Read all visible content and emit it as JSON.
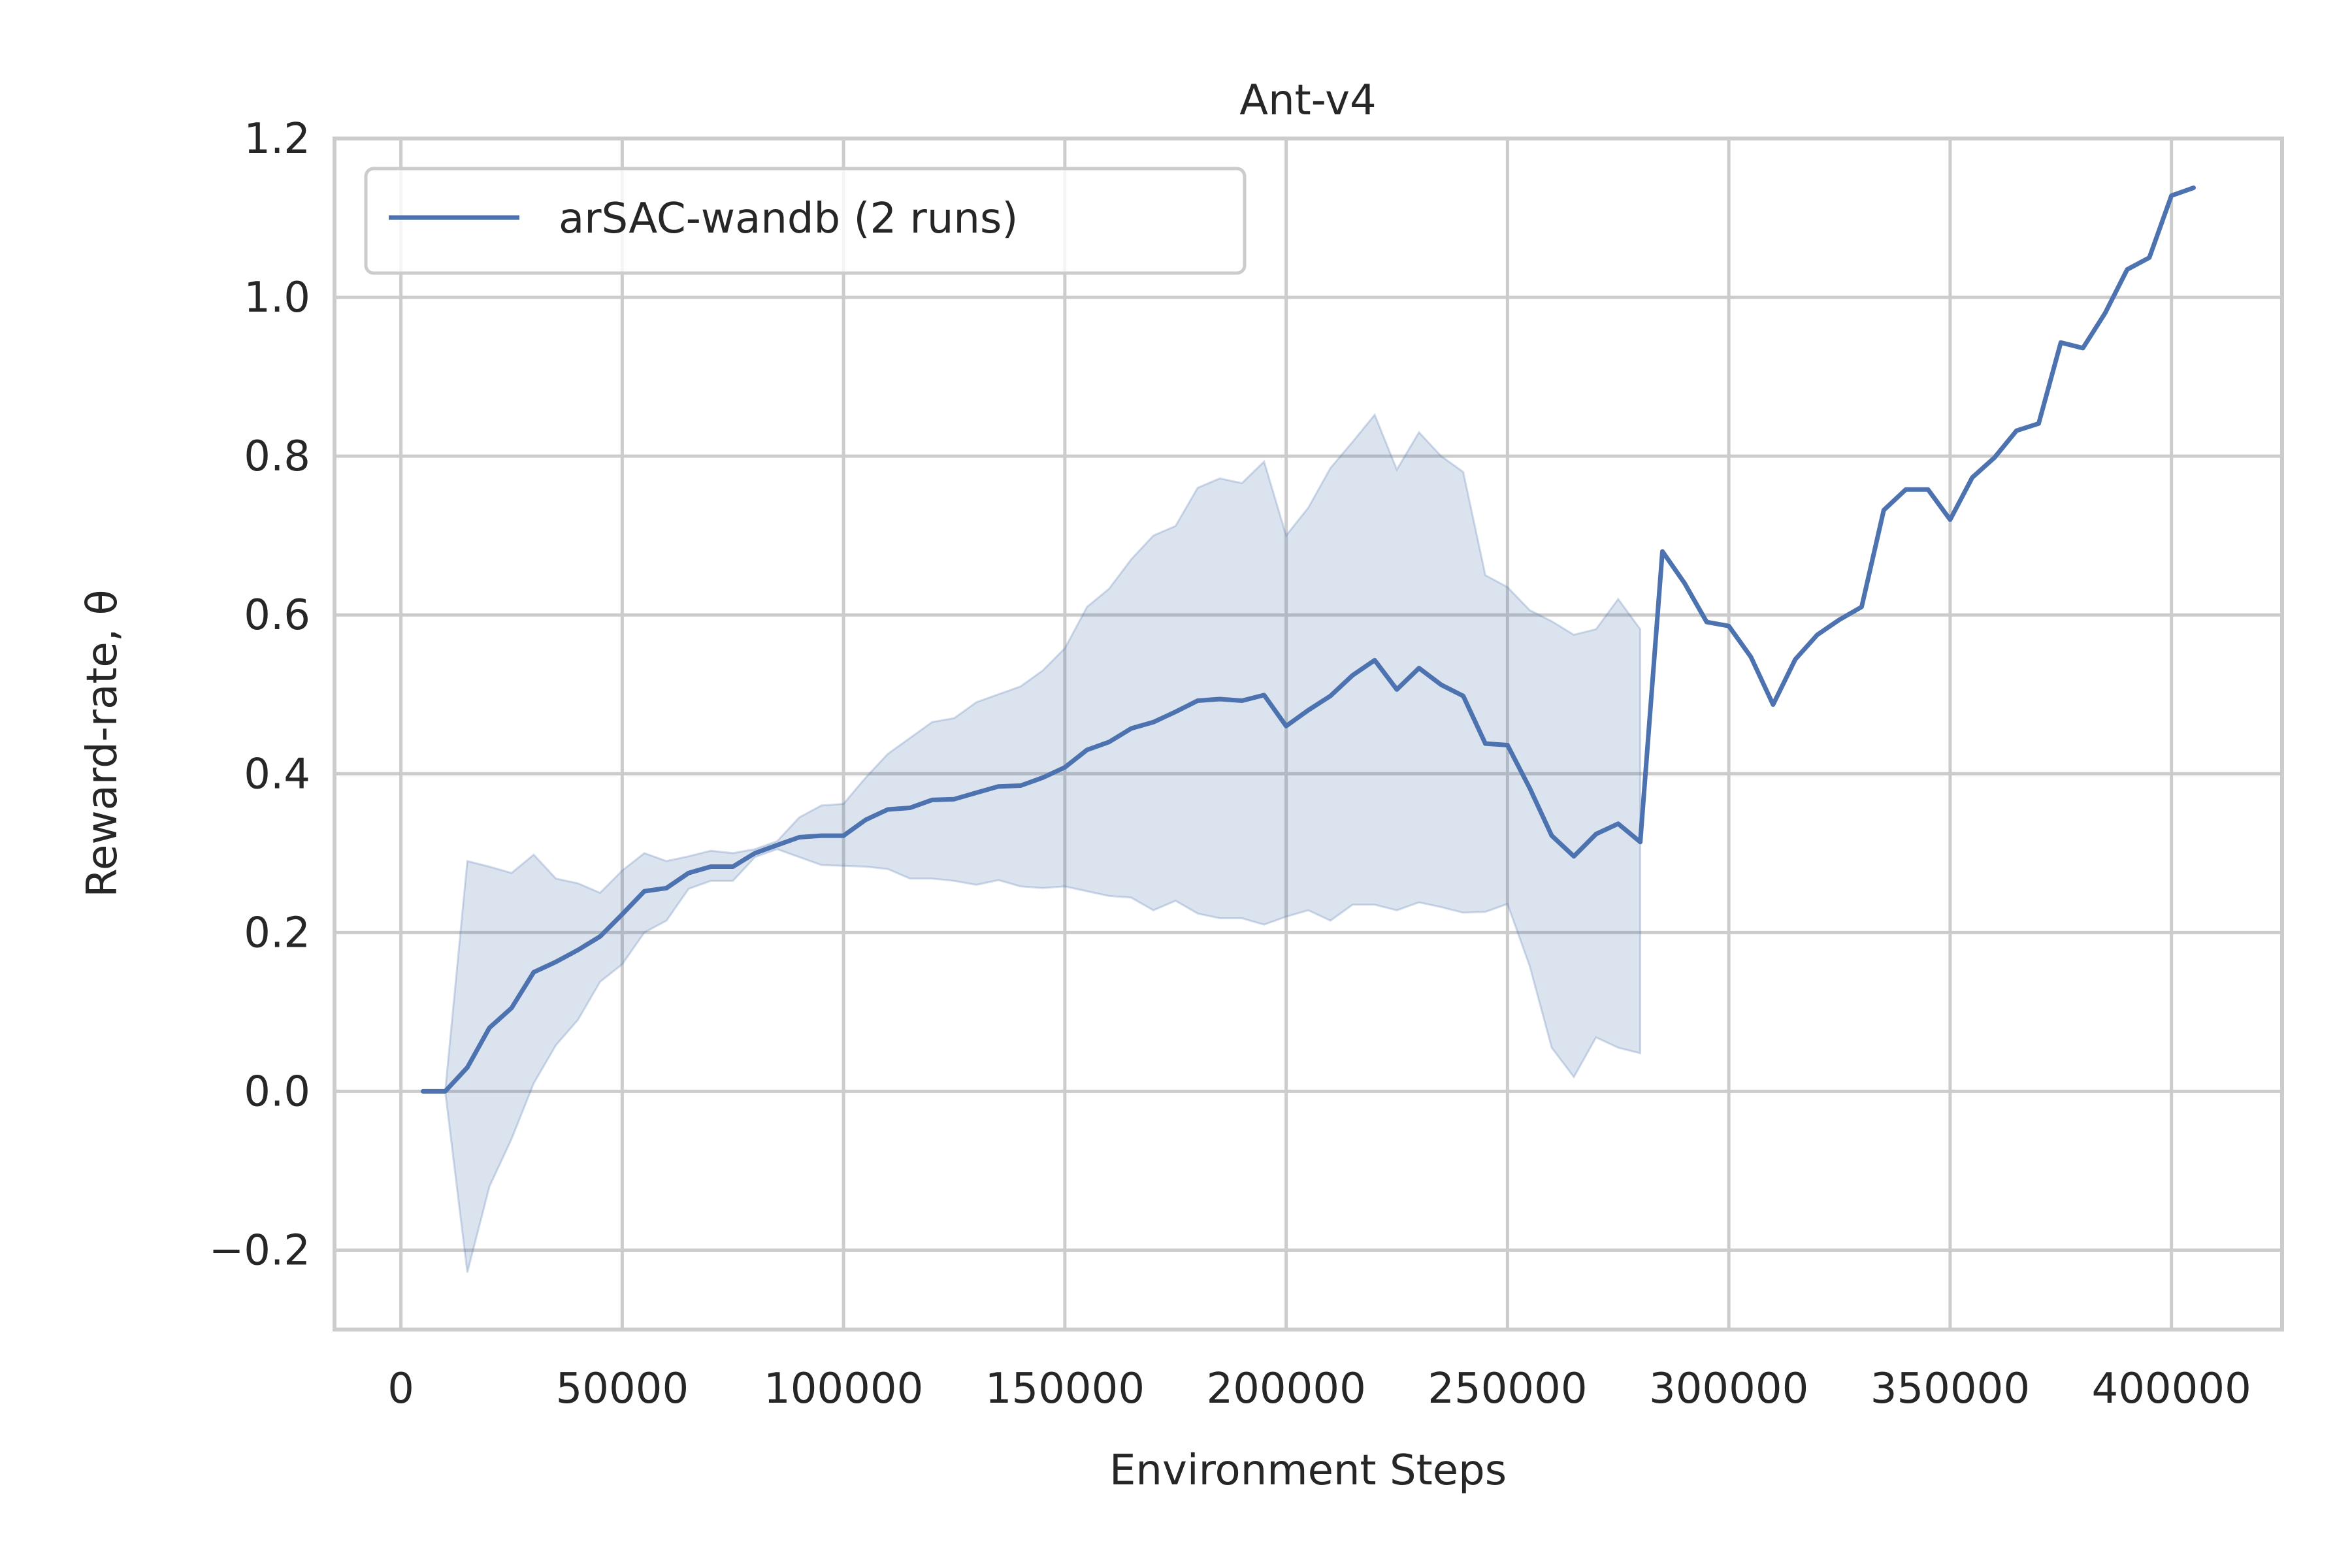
{
  "chart_data": {
    "type": "line",
    "title": "Ant-v4",
    "xlabel": "Environment Steps",
    "ylabel": "Reward-rate, θ",
    "xlim": [
      -15000,
      425000
    ],
    "ylim": [
      -0.3,
      1.2
    ],
    "x_ticks": [
      0,
      50000,
      100000,
      150000,
      200000,
      250000,
      300000,
      350000,
      400000
    ],
    "x_tick_labels": [
      "0",
      "50000",
      "100000",
      "150000",
      "200000",
      "250000",
      "300000",
      "350000",
      "400000"
    ],
    "y_ticks": [
      -0.2,
      0.0,
      0.2,
      0.4,
      0.6,
      0.8,
      1.0,
      1.2
    ],
    "y_tick_labels": [
      "−0.2",
      "0.0",
      "0.2",
      "0.4",
      "0.6",
      "0.8",
      "1.0",
      "1.2"
    ],
    "grid": true,
    "legend_position": "top-left",
    "colors": {
      "line": "#4c72b0",
      "band": "#4c72b0",
      "grid": "#cccccc",
      "spine": "#cccccc"
    },
    "series": [
      {
        "name": "arSAC-wandb (2 runs)",
        "x": [
          5000,
          10000,
          15000,
          20000,
          25000,
          30000,
          35000,
          40000,
          45000,
          50000,
          55000,
          60000,
          65000,
          70000,
          75000,
          80000,
          85000,
          90000,
          95000,
          100000,
          105000,
          110000,
          115000,
          120000,
          125000,
          130000,
          135000,
          140000,
          145000,
          150000,
          155000,
          160000,
          165000,
          170000,
          175000,
          180000,
          185000,
          190000,
          195000,
          200000,
          205000,
          210000,
          215000,
          220000,
          225000,
          230000,
          235000,
          240000,
          245000,
          250000,
          255000,
          260000,
          265000,
          270000,
          275000,
          280000,
          285000,
          290000,
          295000,
          300000,
          305000,
          310000,
          315000,
          320000,
          325000,
          330000,
          335000,
          340000,
          345000,
          350000,
          355000,
          360000,
          365000,
          370000,
          375000,
          380000,
          385000,
          390000,
          395000,
          400000,
          405000
        ],
        "y": [
          0.0,
          0.0,
          0.03,
          0.08,
          0.105,
          0.15,
          0.163,
          0.178,
          0.195,
          0.223,
          0.252,
          0.256,
          0.275,
          0.283,
          0.283,
          0.3,
          0.31,
          0.32,
          0.322,
          0.322,
          0.342,
          0.355,
          0.357,
          0.367,
          0.368,
          0.376,
          0.384,
          0.385,
          0.395,
          0.408,
          0.43,
          0.44,
          0.457,
          0.465,
          0.478,
          0.492,
          0.494,
          0.492,
          0.499,
          0.46,
          0.48,
          0.498,
          0.524,
          0.543,
          0.506,
          0.533,
          0.512,
          0.498,
          0.438,
          0.436,
          0.382,
          0.322,
          0.296,
          0.324,
          0.337,
          0.314,
          0.68,
          0.64,
          0.591,
          0.586,
          0.547,
          0.487,
          0.544,
          0.575,
          0.594,
          0.61,
          0.732,
          0.758,
          0.758,
          0.72,
          0.773,
          0.798,
          0.832,
          0.841,
          0.943,
          0.936,
          0.98,
          1.035,
          1.05,
          1.128,
          1.138
        ],
        "band_x": [
          5000,
          10000,
          15000,
          20000,
          25000,
          30000,
          35000,
          40000,
          45000,
          50000,
          55000,
          60000,
          65000,
          70000,
          75000,
          80000,
          85000,
          90000,
          95000,
          100000,
          105000,
          110000,
          115000,
          120000,
          125000,
          130000,
          135000,
          140000,
          145000,
          150000,
          155000,
          160000,
          165000,
          170000,
          175000,
          180000,
          185000,
          190000,
          195000,
          200000,
          205000,
          210000,
          215000,
          220000,
          225000,
          230000,
          235000,
          240000,
          245000,
          250000,
          255000,
          260000,
          265000,
          270000,
          275000,
          280000
        ],
        "band_upper": [
          0.0,
          0.0,
          0.29,
          0.283,
          0.275,
          0.298,
          0.268,
          0.262,
          0.25,
          0.278,
          0.3,
          0.29,
          0.296,
          0.303,
          0.3,
          0.305,
          0.315,
          0.345,
          0.36,
          0.362,
          0.395,
          0.425,
          0.445,
          0.465,
          0.47,
          0.49,
          0.5,
          0.51,
          0.53,
          0.558,
          0.61,
          0.633,
          0.67,
          0.7,
          0.712,
          0.76,
          0.772,
          0.766,
          0.793,
          0.7,
          0.735,
          0.785,
          0.818,
          0.852,
          0.783,
          0.83,
          0.8,
          0.78,
          0.65,
          0.635,
          0.606,
          0.592,
          0.575,
          0.582,
          0.62,
          0.582
        ],
        "band_lower": [
          0.0,
          0.0,
          -0.228,
          -0.12,
          -0.06,
          0.01,
          0.058,
          0.09,
          0.138,
          0.16,
          0.2,
          0.215,
          0.255,
          0.265,
          0.265,
          0.295,
          0.305,
          0.295,
          0.285,
          0.284,
          0.283,
          0.28,
          0.268,
          0.268,
          0.265,
          0.26,
          0.266,
          0.258,
          0.256,
          0.258,
          0.252,
          0.246,
          0.244,
          0.228,
          0.24,
          0.224,
          0.218,
          0.218,
          0.21,
          0.22,
          0.228,
          0.215,
          0.235,
          0.235,
          0.228,
          0.238,
          0.232,
          0.225,
          0.226,
          0.236,
          0.158,
          0.055,
          0.018,
          0.068,
          0.055,
          0.048
        ]
      }
    ]
  }
}
